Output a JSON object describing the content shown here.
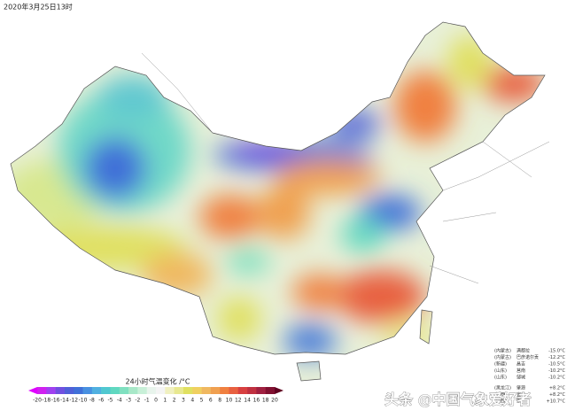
{
  "header": {
    "timestamp": "2020年3月25日13时"
  },
  "legend": {
    "title": "24小时气温变化 /°C",
    "labels": [
      "-20",
      "-18",
      "-16",
      "-14",
      "-12",
      "-10",
      "-8",
      "-6",
      "-5",
      "-4",
      "-3",
      "-2",
      "-1",
      "0",
      "1",
      "2",
      "3",
      "4",
      "5",
      "6",
      "8",
      "10",
      "12",
      "14",
      "16",
      "18",
      "20"
    ],
    "colors": [
      "#e000ff",
      "#d020f0",
      "#a040f0",
      "#7050e0",
      "#5060d8",
      "#4070d8",
      "#4890e0",
      "#50b0e0",
      "#50c8d0",
      "#60d8c0",
      "#80e0c0",
      "#a8e8c8",
      "#c8f0d8",
      "#e8f4ec",
      "#f4f4f4",
      "#f0f0c0",
      "#e8e890",
      "#e0e060",
      "#f0d060",
      "#f0b860",
      "#f0a050",
      "#f08040",
      "#e86040",
      "#d84040",
      "#c03040",
      "#a02040",
      "#801030",
      "#600020"
    ]
  },
  "stations": {
    "cold": [
      {
        "region": "(内蒙古)",
        "name": "满都拉",
        "value": "-15.0°C"
      },
      {
        "region": "(内蒙古)",
        "name": "巴彦诺尔贡",
        "value": "-12.2°C"
      },
      {
        "region": "(新疆)",
        "name": "昌吉",
        "value": "-10.5°C"
      },
      {
        "region": "(山东)",
        "name": "莒南",
        "value": "-10.2°C"
      },
      {
        "region": "(山东)",
        "name": "邹城",
        "value": "-10.2°C"
      }
    ],
    "warm": [
      {
        "region": "(黑龙江)",
        "name": "肇源",
        "value": "+8.2°C"
      },
      {
        "region": "(江西)",
        "name": "宜丰",
        "value": "+8.2°C"
      },
      {
        "region": "(江西)",
        "name": "崇仁",
        "value": "+10.7°C"
      }
    ]
  },
  "watermark": "头条 @中国气象爱好者"
}
